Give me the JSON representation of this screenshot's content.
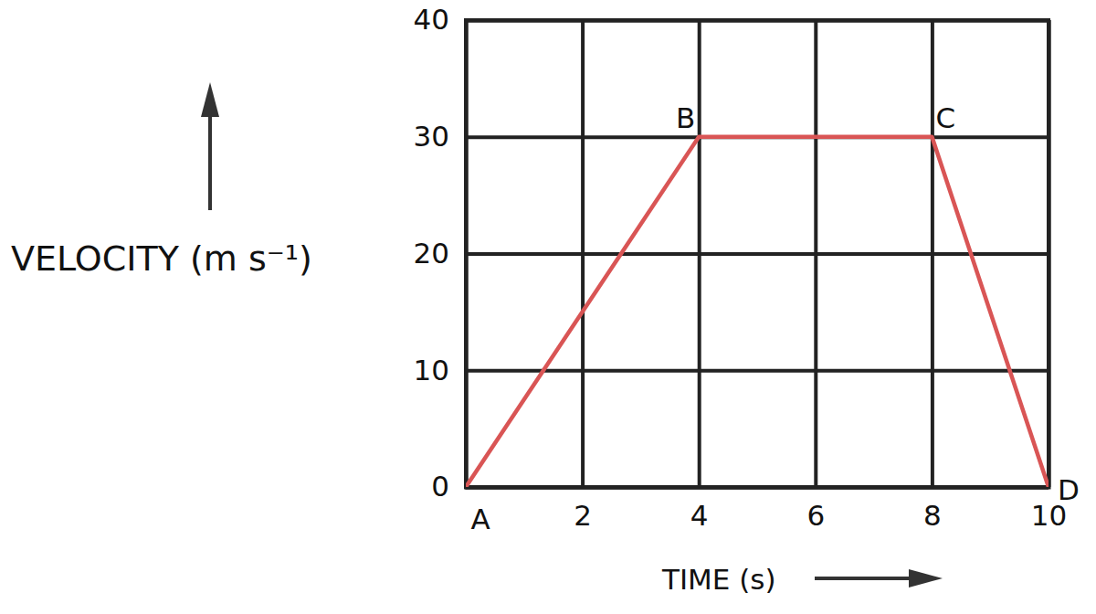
{
  "chart_data": {
    "type": "line",
    "x": [
      0,
      4,
      8,
      10
    ],
    "values": [
      0,
      30,
      30,
      0
    ],
    "point_labels": [
      "A",
      "B",
      "C",
      "D"
    ],
    "color": "#d95555",
    "x_label": "TIME (s)",
    "y_label": "VELOCITY (m s⁻¹)",
    "xlim": [
      0,
      10
    ],
    "ylim": [
      0,
      40
    ],
    "xticks": [
      2,
      4,
      6,
      8,
      10
    ],
    "yticks": [
      0,
      10,
      20,
      30,
      40
    ],
    "grid": true
  }
}
